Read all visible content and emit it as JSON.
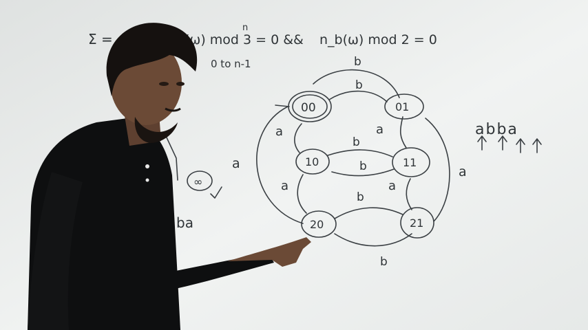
{
  "colors": {
    "board": "#eef0ef",
    "ink": "#2f3437",
    "shirt": "#0e0f10",
    "skin": "#6b4a36",
    "hair": "#15110f"
  },
  "board": {
    "formula_top_left": "Σ =",
    "formula_mid": "(ω) mod 3 = 0 &&",
    "formula_right": "n_b(ω) mod 2 = 0",
    "formula_superscript": "n",
    "range_note": "0 to n-1",
    "example_string": "abba",
    "partial_left_state": "∞",
    "partial_left_text": "ba"
  },
  "dfa": {
    "states": [
      {
        "label": "00",
        "initial": true,
        "final": true
      },
      {
        "label": "01"
      },
      {
        "label": "10"
      },
      {
        "label": "11"
      },
      {
        "label": "20"
      },
      {
        "label": "21"
      }
    ],
    "edge_labels": {
      "b_top_back": "b",
      "b_00_01": "b",
      "a_01_11": "a",
      "a_00_10": "a",
      "b_10_11": "b",
      "b_11_10": "b",
      "a_10_20": "a",
      "a_11_21": "a",
      "b_20_21": "b",
      "b_21_20": "b",
      "a_20_00": "a",
      "a_21_01": "a"
    }
  }
}
